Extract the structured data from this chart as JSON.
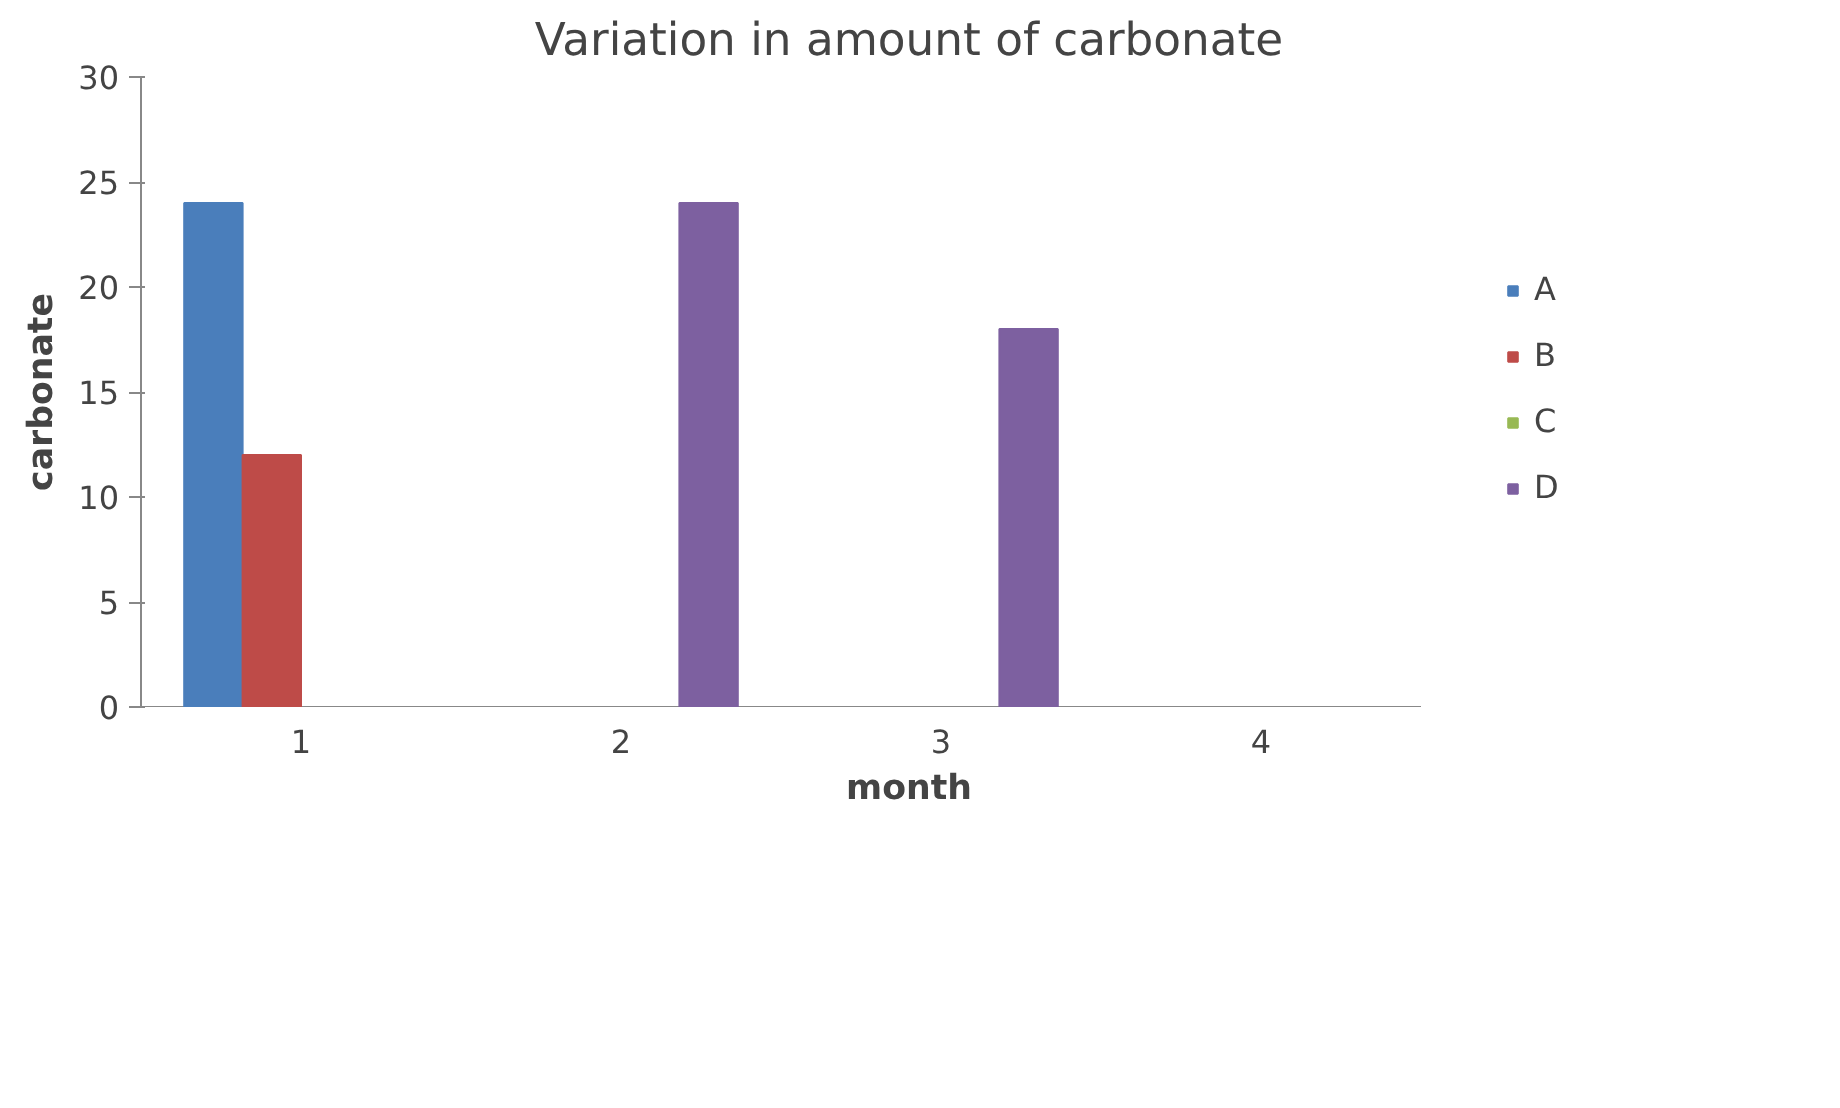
{
  "chart_data": {
    "type": "bar",
    "title": "Variation in amount of carbonate",
    "xlabel": "month",
    "ylabel": "carbonate",
    "categories": [
      "1",
      "2",
      "3",
      "4"
    ],
    "series": [
      {
        "name": "A",
        "color": "#4a7ebb",
        "values": [
          24,
          null,
          null,
          null
        ]
      },
      {
        "name": "B",
        "color": "#be4b48",
        "values": [
          12,
          null,
          null,
          null
        ]
      },
      {
        "name": "C",
        "color": "#98b954",
        "values": [
          null,
          null,
          null,
          null
        ]
      },
      {
        "name": "D",
        "color": "#7d60a0",
        "values": [
          null,
          24,
          18,
          null
        ]
      }
    ],
    "ylim": [
      0,
      30
    ],
    "yticks": [
      0,
      5,
      10,
      15,
      20,
      25,
      30
    ],
    "grid": false,
    "legend": "right"
  }
}
